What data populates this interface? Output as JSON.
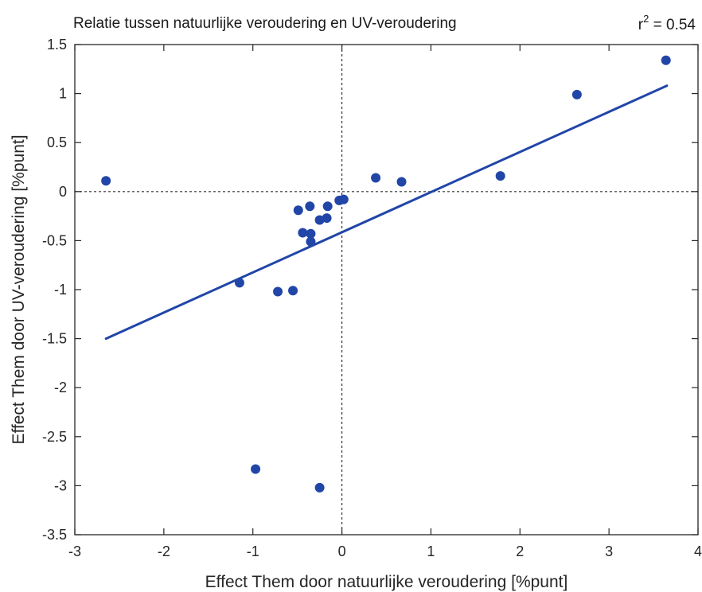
{
  "chart_data": {
    "type": "scatter",
    "title": "Relatie tussen natuurlijke veroudering en UV-veroudering",
    "annotation": {
      "base": "r",
      "exponent": "2",
      "suffix": " = 0.54"
    },
    "xlabel": "Effect Them door natuurlijke veroudering [%punt]",
    "ylabel": "Effect Them door UV-veroudering [%punt]",
    "xlim": [
      -3,
      4
    ],
    "ylim": [
      -3.5,
      1.5
    ],
    "xticks": [
      -3,
      -2,
      -1,
      0,
      1,
      2,
      3,
      4
    ],
    "yticks": [
      -3.5,
      -3,
      -2.5,
      -2,
      -1.5,
      -1,
      -0.5,
      0,
      0.5,
      1,
      1.5
    ],
    "xtick_labels": [
      "-3",
      "-2",
      "-1",
      "0",
      "1",
      "2",
      "3",
      "4"
    ],
    "ytick_labels": [
      "-3.5",
      "-3",
      "-2.5",
      "-2",
      "-1.5",
      "-1",
      "-0.5",
      "0",
      "0.5",
      "1",
      "1.5"
    ],
    "grid": false,
    "reference_lines": {
      "x": 0,
      "y": 0,
      "style": "dotted"
    },
    "points": [
      {
        "x": -2.65,
        "y": 0.11
      },
      {
        "x": -1.15,
        "y": -0.93
      },
      {
        "x": -0.72,
        "y": -1.02
      },
      {
        "x": -0.55,
        "y": -1.01
      },
      {
        "x": -0.97,
        "y": -2.83
      },
      {
        "x": -0.25,
        "y": -3.02
      },
      {
        "x": -0.49,
        "y": -0.19
      },
      {
        "x": -0.36,
        "y": -0.15
      },
      {
        "x": -0.44,
        "y": -0.42
      },
      {
        "x": -0.35,
        "y": -0.43
      },
      {
        "x": -0.35,
        "y": -0.51
      },
      {
        "x": -0.25,
        "y": -0.29
      },
      {
        "x": -0.17,
        "y": -0.27
      },
      {
        "x": -0.16,
        "y": -0.15
      },
      {
        "x": -0.03,
        "y": -0.09
      },
      {
        "x": 0.02,
        "y": -0.08
      },
      {
        "x": 0.38,
        "y": 0.14
      },
      {
        "x": 0.67,
        "y": 0.1
      },
      {
        "x": 1.78,
        "y": 0.16
      },
      {
        "x": 2.64,
        "y": 0.99
      },
      {
        "x": 3.64,
        "y": 1.34
      }
    ],
    "fit_line": {
      "x": [
        -2.65,
        3.65
      ],
      "y": [
        -1.5,
        1.08
      ]
    },
    "colors": {
      "marker": "#2146a8",
      "line": "#2146a8",
      "axis": "#262626"
    }
  }
}
